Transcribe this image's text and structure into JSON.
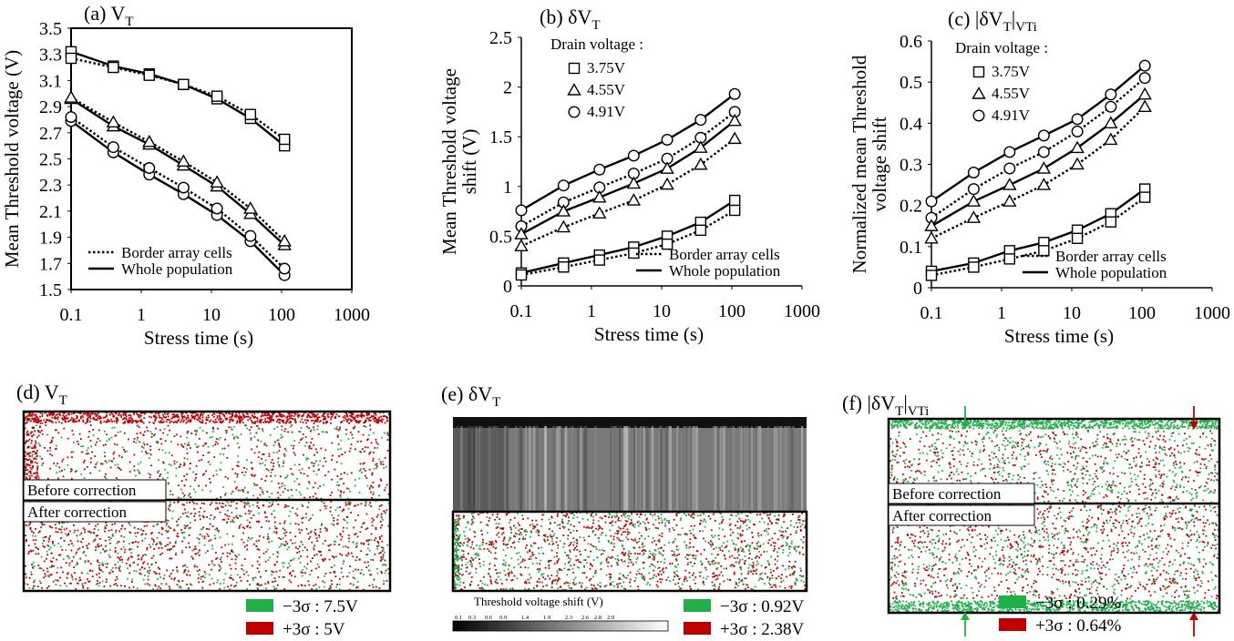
{
  "figure": {
    "colors": {
      "green": "#1fb04a",
      "red": "#c00000",
      "black": "#000000"
    }
  },
  "chart_data": [
    {
      "panel": "a",
      "type": "line",
      "title_main": "(a) V",
      "title_sub": "T",
      "xlabel": "Stress time (s)",
      "ylabel": "Mean Threshold voltage (V)",
      "x_scale": "log",
      "xlim": [
        0.1,
        1000
      ],
      "x_ticks": [
        0.1,
        1,
        10,
        100,
        1000
      ],
      "x_tick_labels": [
        "0.1",
        "1",
        "10",
        "100",
        "1000"
      ],
      "ylim": [
        1.5,
        3.5
      ],
      "y_ticks": [
        1.5,
        1.7,
        1.9,
        2.1,
        2.3,
        2.5,
        2.7,
        2.9,
        3.1,
        3.3,
        3.5
      ],
      "y_tick_labels": [
        "1.5",
        "1.7",
        "1.9",
        "2.1",
        "2.3",
        "2.5",
        "2.7",
        "2.9",
        "3.1",
        "3.3",
        "3.5"
      ],
      "x": [
        0.1,
        0.4,
        1.3,
        4,
        12,
        36,
        110
      ],
      "legend": {
        "position": "bottom-left",
        "box": false,
        "drain_title": "",
        "lines": [
          "Border array cells",
          "Whole population"
        ],
        "markers": []
      },
      "series": [
        {
          "marker": "square",
          "style": "solid",
          "values": [
            3.32,
            3.21,
            3.15,
            3.07,
            2.96,
            2.81,
            2.6
          ]
        },
        {
          "marker": "square",
          "style": "dotted",
          "values": [
            3.27,
            3.2,
            3.14,
            3.07,
            2.98,
            2.84,
            2.65
          ]
        },
        {
          "marker": "triangle",
          "style": "solid",
          "values": [
            2.96,
            2.75,
            2.61,
            2.45,
            2.29,
            2.08,
            1.84
          ]
        },
        {
          "marker": "triangle",
          "style": "dotted",
          "values": [
            2.97,
            2.78,
            2.63,
            2.48,
            2.32,
            2.12,
            1.87
          ]
        },
        {
          "marker": "circle",
          "style": "solid",
          "values": [
            2.79,
            2.55,
            2.38,
            2.23,
            2.07,
            1.87,
            1.61
          ]
        },
        {
          "marker": "circle",
          "style": "dotted",
          "values": [
            2.82,
            2.59,
            2.43,
            2.28,
            2.12,
            1.91,
            1.66
          ]
        }
      ]
    },
    {
      "panel": "b",
      "type": "line",
      "title_main": "(b) δV",
      "title_sub": "T",
      "xlabel": "Stress time (s)",
      "ylabel": "Mean Threshold voltage",
      "ylabel2": "shift (V)",
      "x_scale": "log",
      "xlim": [
        0.1,
        1000
      ],
      "x_ticks": [
        0.1,
        1,
        10,
        100,
        1000
      ],
      "x_tick_labels": [
        "0.1",
        "1",
        "10",
        "100",
        "1000"
      ],
      "ylim": [
        0,
        2.5
      ],
      "y_ticks": [
        0,
        0.5,
        1,
        1.5,
        2,
        2.5
      ],
      "y_tick_labels": [
        "0",
        "0.5",
        "1",
        "1.5",
        "2",
        "2.5"
      ],
      "x": [
        0.1,
        0.4,
        1.3,
        4,
        12,
        36,
        110
      ],
      "legend": {
        "position": "bottom-right",
        "box": false,
        "drain_title": "Drain voltage :",
        "lines": [
          "Border array cells",
          "Whole population"
        ],
        "markers": [
          {
            "marker": "square",
            "label": "3.75V"
          },
          {
            "marker": "triangle",
            "label": "4.55V"
          },
          {
            "marker": "circle",
            "label": "4.91V"
          }
        ]
      },
      "series": [
        {
          "marker": "circle",
          "style": "solid",
          "values": [
            0.76,
            1.01,
            1.17,
            1.31,
            1.47,
            1.67,
            1.93
          ]
        },
        {
          "marker": "circle",
          "style": "dotted",
          "values": [
            0.6,
            0.84,
            0.99,
            1.13,
            1.28,
            1.49,
            1.75
          ]
        },
        {
          "marker": "triangle",
          "style": "solid",
          "values": [
            0.52,
            0.75,
            0.89,
            1.03,
            1.18,
            1.39,
            1.66
          ]
        },
        {
          "marker": "triangle",
          "style": "dotted",
          "values": [
            0.4,
            0.59,
            0.73,
            0.86,
            1.02,
            1.22,
            1.48
          ]
        },
        {
          "marker": "square",
          "style": "solid",
          "values": [
            0.13,
            0.23,
            0.31,
            0.39,
            0.5,
            0.64,
            0.86
          ]
        },
        {
          "marker": "square",
          "style": "dotted",
          "values": [
            0.11,
            0.19,
            0.26,
            0.33,
            0.42,
            0.56,
            0.76
          ]
        }
      ]
    },
    {
      "panel": "c",
      "type": "line",
      "title_main": "(c) |δV",
      "title_sub": "T",
      "title_after": "|",
      "title_sub2": "VTi",
      "xlabel": "Stress time (s)",
      "ylabel": "Normalized mean Threshold",
      "ylabel2": "voltage shift",
      "x_scale": "log",
      "xlim": [
        0.1,
        1000
      ],
      "x_ticks": [
        0.1,
        1,
        10,
        100,
        1000
      ],
      "x_tick_labels": [
        "0.1",
        "1",
        "10",
        "100",
        "1000"
      ],
      "ylim": [
        0,
        0.6
      ],
      "y_ticks": [
        0,
        0.1,
        0.2,
        0.3,
        0.4,
        0.5,
        0.6
      ],
      "y_tick_labels": [
        "0",
        "0.1",
        "0.2",
        "0.3",
        "0.4",
        "0.5",
        "0.6"
      ],
      "x": [
        0.1,
        0.4,
        1.3,
        4,
        12,
        36,
        110
      ],
      "legend": {
        "position": "bottom-right",
        "box": false,
        "drain_title": "Drain voltage :",
        "lines": [
          "Border array cells",
          "Whole population"
        ],
        "markers": [
          {
            "marker": "square",
            "label": "3.75V"
          },
          {
            "marker": "triangle",
            "label": "4.55V"
          },
          {
            "marker": "circle",
            "label": "4.91V"
          }
        ]
      },
      "series": [
        {
          "marker": "circle",
          "style": "solid",
          "values": [
            0.21,
            0.28,
            0.33,
            0.37,
            0.41,
            0.47,
            0.54
          ]
        },
        {
          "marker": "circle",
          "style": "dotted",
          "values": [
            0.17,
            0.24,
            0.29,
            0.33,
            0.38,
            0.44,
            0.51
          ]
        },
        {
          "marker": "triangle",
          "style": "solid",
          "values": [
            0.15,
            0.21,
            0.25,
            0.29,
            0.34,
            0.4,
            0.47
          ]
        },
        {
          "marker": "triangle",
          "style": "dotted",
          "values": [
            0.12,
            0.17,
            0.21,
            0.25,
            0.3,
            0.36,
            0.44
          ]
        },
        {
          "marker": "square",
          "style": "solid",
          "values": [
            0.04,
            0.06,
            0.09,
            0.11,
            0.14,
            0.18,
            0.24
          ]
        },
        {
          "marker": "square",
          "style": "dotted",
          "values": [
            0.03,
            0.05,
            0.07,
            0.09,
            0.12,
            0.16,
            0.22
          ]
        }
      ]
    },
    {
      "panel": "d",
      "type": "heatmap",
      "title_main": "(d) V",
      "title_sub": "T",
      "labels": [
        "Before correction",
        "After correction"
      ],
      "legend": [
        {
          "color": "green",
          "text": "−3σ : 7.5V"
        },
        {
          "color": "red",
          "text": "+3σ : 5V"
        }
      ]
    },
    {
      "panel": "e",
      "type": "heatmap",
      "title_main": "(e) δV",
      "title_sub": "T",
      "colorbar": {
        "label": "Threshold voltage shift (V)",
        "ticks": [
          "0.1",
          "0.3",
          "0.6",
          "0.9",
          "1.4",
          "1.9",
          "2.3",
          "2.6",
          "2.8",
          "2.9"
        ]
      },
      "legend": [
        {
          "color": "green",
          "text": "−3σ : 0.92V"
        },
        {
          "color": "red",
          "text": "+3σ : 2.38V"
        }
      ]
    },
    {
      "panel": "f",
      "type": "heatmap",
      "title_main": "(f) |δV",
      "title_sub": "T",
      "title_after": "|",
      "title_sub2": "VTi",
      "labels": [
        "Before correction",
        "After correction"
      ],
      "legend": [
        {
          "color": "green",
          "text": "−3σ : 0.29%"
        },
        {
          "color": "red",
          "text": "+3σ : 0.64%"
        }
      ]
    }
  ]
}
